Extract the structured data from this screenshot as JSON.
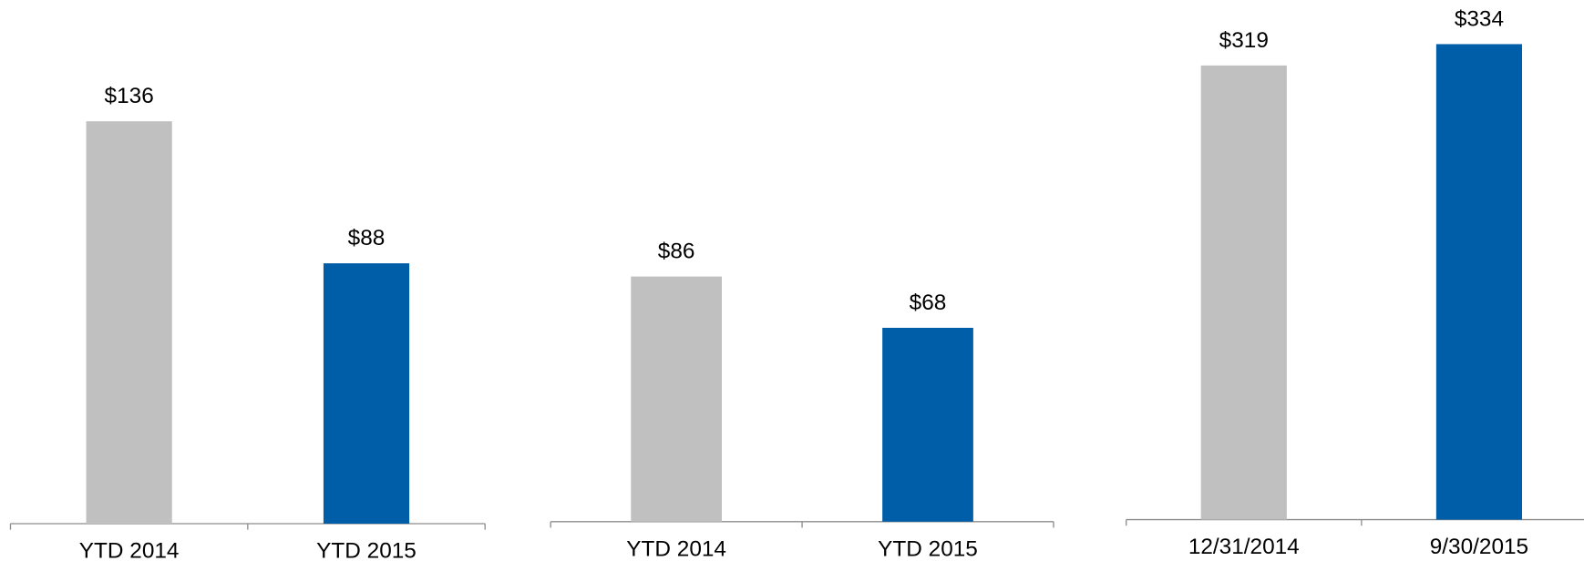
{
  "chart_data": [
    {
      "type": "bar",
      "categories": [
        "YTD 2014",
        "YTD 2015"
      ],
      "values": [
        136,
        88
      ],
      "value_labels": [
        "$136",
        "$88"
      ],
      "colors": [
        "#c0c0c0",
        "#005da8"
      ],
      "ylim": [
        0,
        177
      ]
    },
    {
      "type": "bar",
      "categories": [
        "YTD 2014",
        "YTD 2015"
      ],
      "values": [
        86,
        68
      ],
      "value_labels": [
        "$86",
        "$68"
      ],
      "colors": [
        "#c0c0c0",
        "#005da8"
      ],
      "ylim": [
        0,
        183
      ]
    },
    {
      "type": "bar",
      "categories": [
        "12/31/2014",
        "9/30/2015"
      ],
      "values": [
        319,
        334
      ],
      "value_labels": [
        "$319",
        "$334"
      ],
      "colors": [
        "#c0c0c0",
        "#005da8"
      ],
      "ylim": [
        0,
        365
      ]
    }
  ]
}
